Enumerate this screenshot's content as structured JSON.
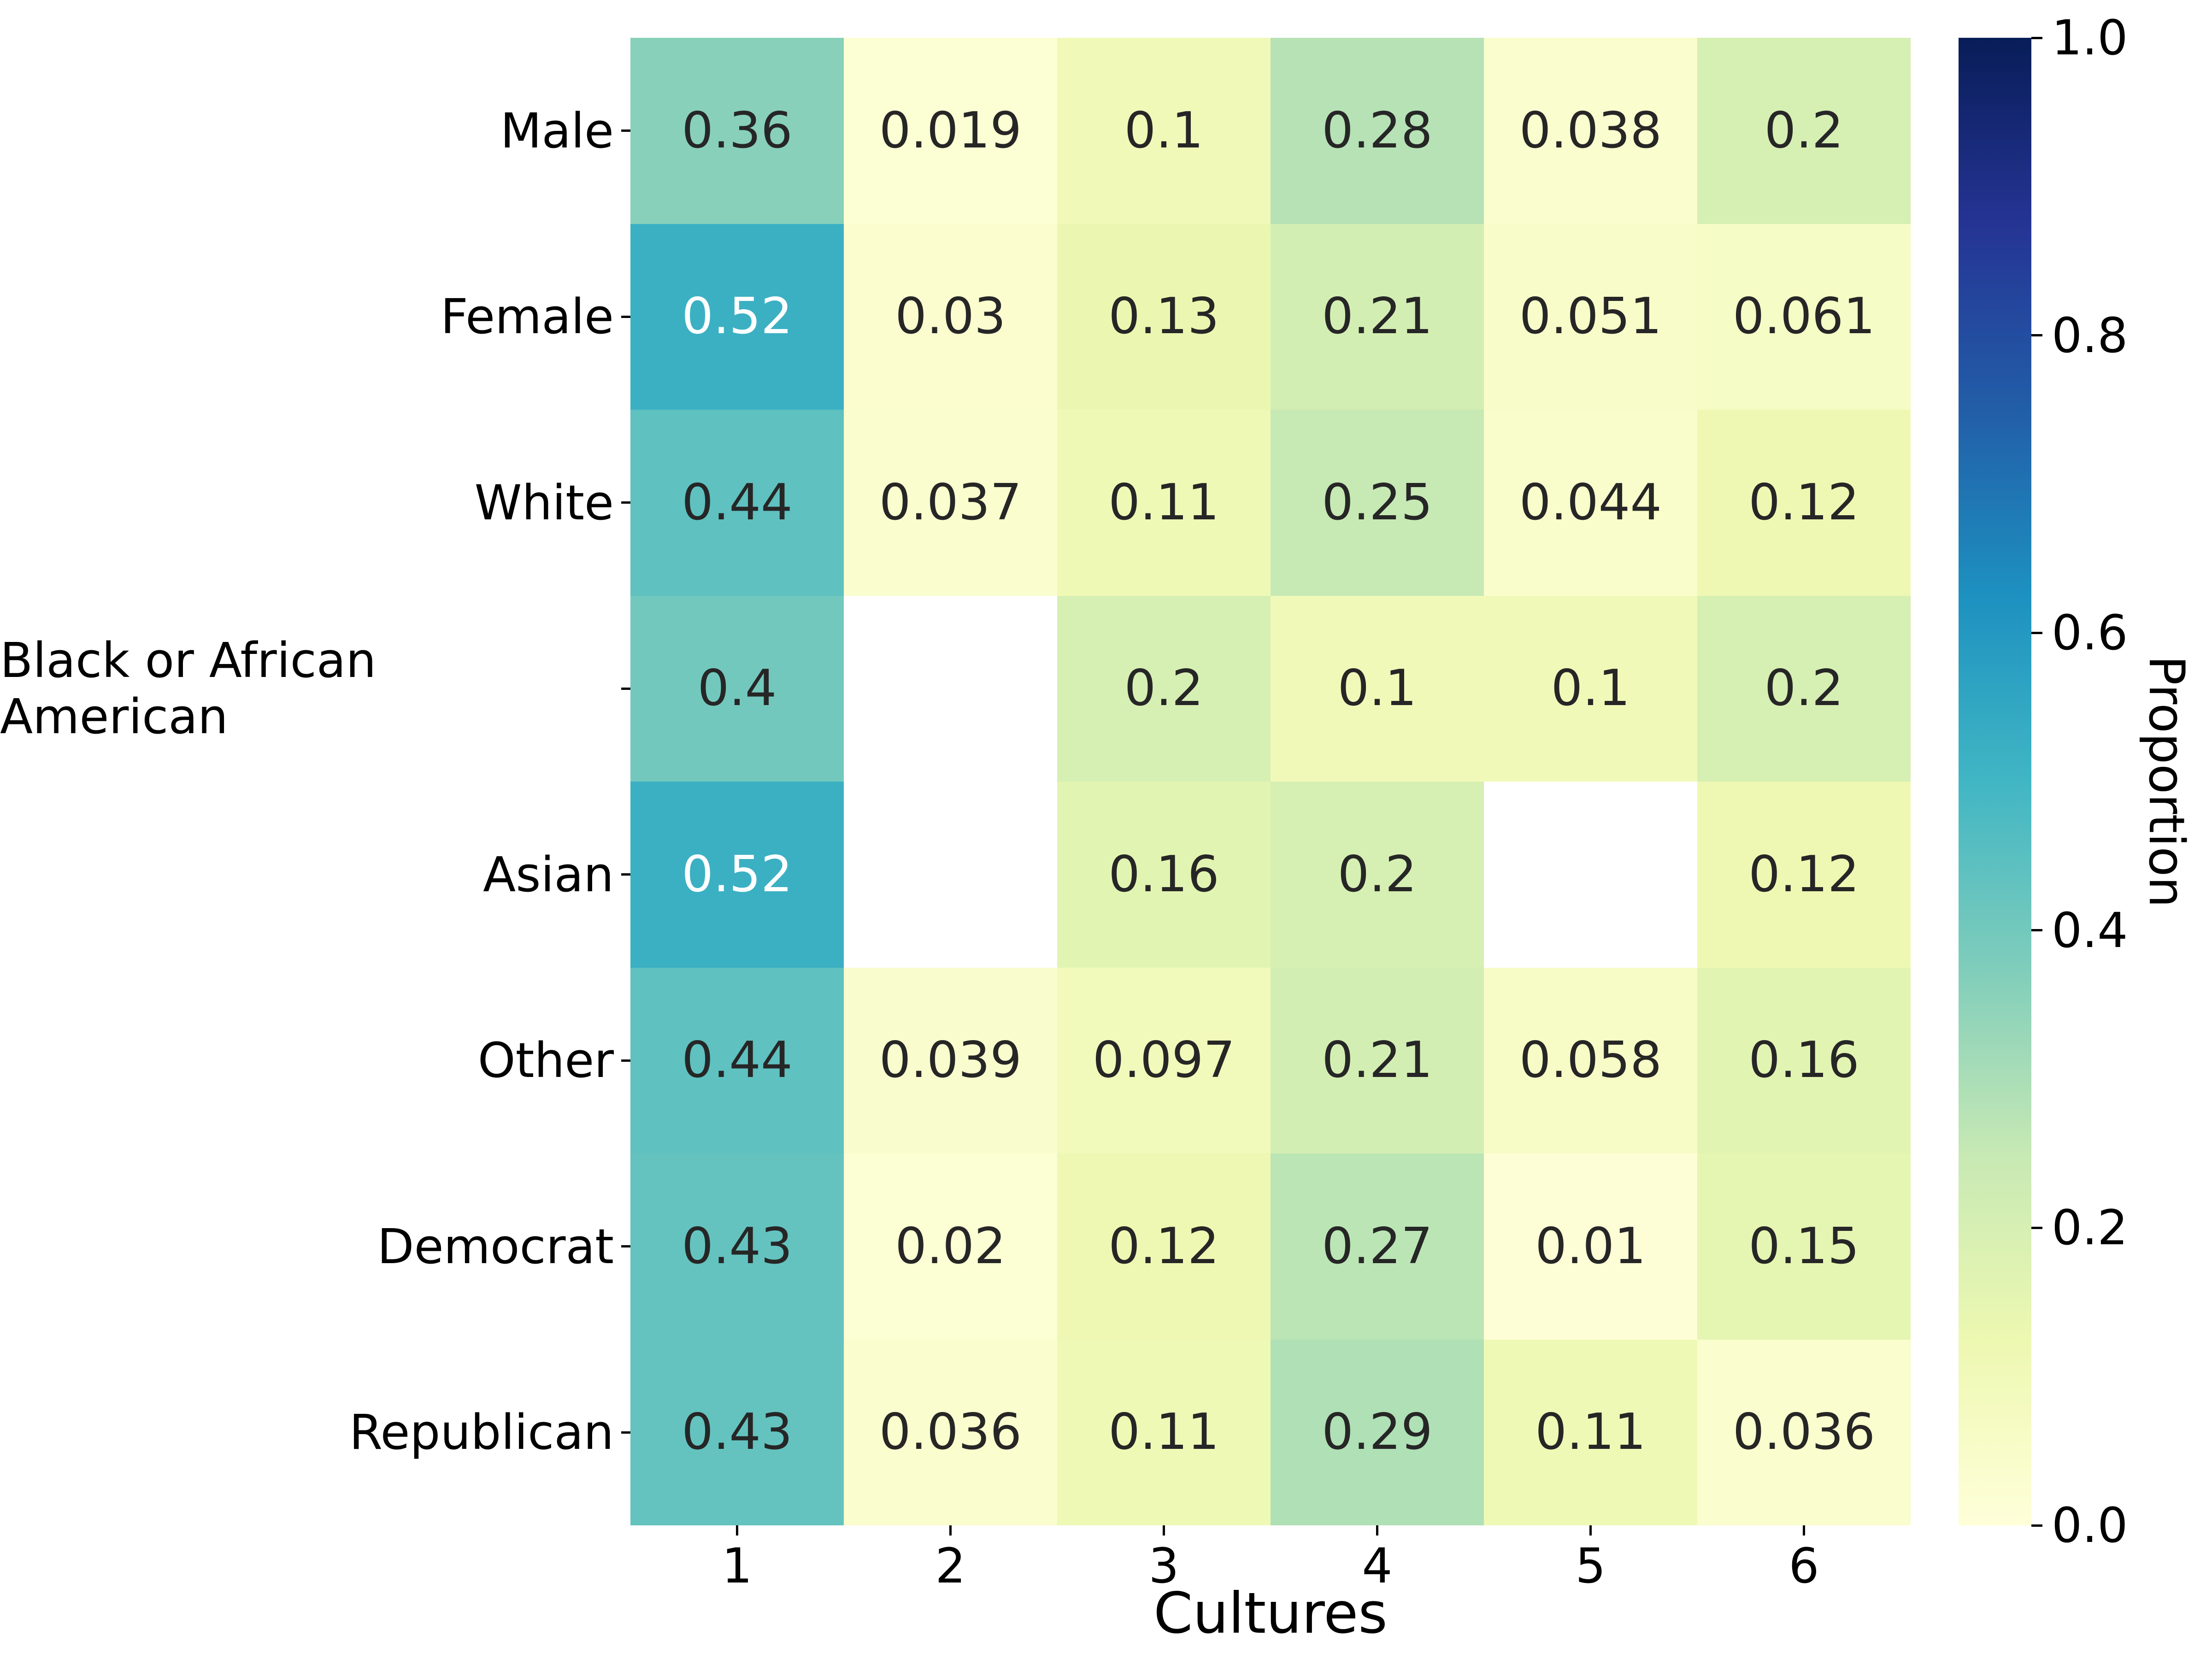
{
  "chart_data": {
    "type": "heatmap",
    "title": "",
    "xlabel": "Cultures",
    "ylabel": "",
    "colorbar_label": "Proportion",
    "x_categories": [
      "1",
      "2",
      "3",
      "4",
      "5",
      "6"
    ],
    "y_categories": [
      "Male",
      "Female",
      "White",
      "Black or African American",
      "Asian",
      "Other",
      "Democrat",
      "Republican"
    ],
    "series": [
      {
        "name": "Male",
        "values": [
          0.36,
          0.019,
          0.1,
          0.28,
          0.038,
          0.2
        ]
      },
      {
        "name": "Female",
        "values": [
          0.52,
          0.03,
          0.13,
          0.21,
          0.051,
          0.061
        ]
      },
      {
        "name": "White",
        "values": [
          0.44,
          0.037,
          0.11,
          0.25,
          0.044,
          0.12
        ]
      },
      {
        "name": "Black or African American",
        "values": [
          0.4,
          null,
          0.2,
          0.1,
          0.1,
          0.2
        ]
      },
      {
        "name": "Asian",
        "values": [
          0.52,
          null,
          0.16,
          0.2,
          null,
          0.12
        ]
      },
      {
        "name": "Other",
        "values": [
          0.44,
          0.039,
          0.097,
          0.21,
          0.058,
          0.16
        ]
      },
      {
        "name": "Democrat",
        "values": [
          0.43,
          0.02,
          0.12,
          0.27,
          0.01,
          0.15
        ]
      },
      {
        "name": "Republican",
        "values": [
          0.43,
          0.036,
          0.11,
          0.29,
          0.11,
          0.036
        ]
      }
    ],
    "value_range": [
      0.0,
      1.0
    ],
    "colorbar_ticks": [
      "0.0",
      "0.2",
      "0.4",
      "0.6",
      "0.8",
      "1.0"
    ],
    "colormap": {
      "name": "YlGnBu",
      "stops": [
        "#ffffd9",
        "#edf8b1",
        "#c7e9b4",
        "#7fcdbb",
        "#41b6c4",
        "#1d91c0",
        "#225ea8",
        "#253494",
        "#081d58"
      ]
    },
    "missing_color": "#ffffff",
    "annotation_colors": {
      "dark": "#262626",
      "light": "#ffffff"
    },
    "grid": false,
    "legend_position": "right-colorbar"
  }
}
